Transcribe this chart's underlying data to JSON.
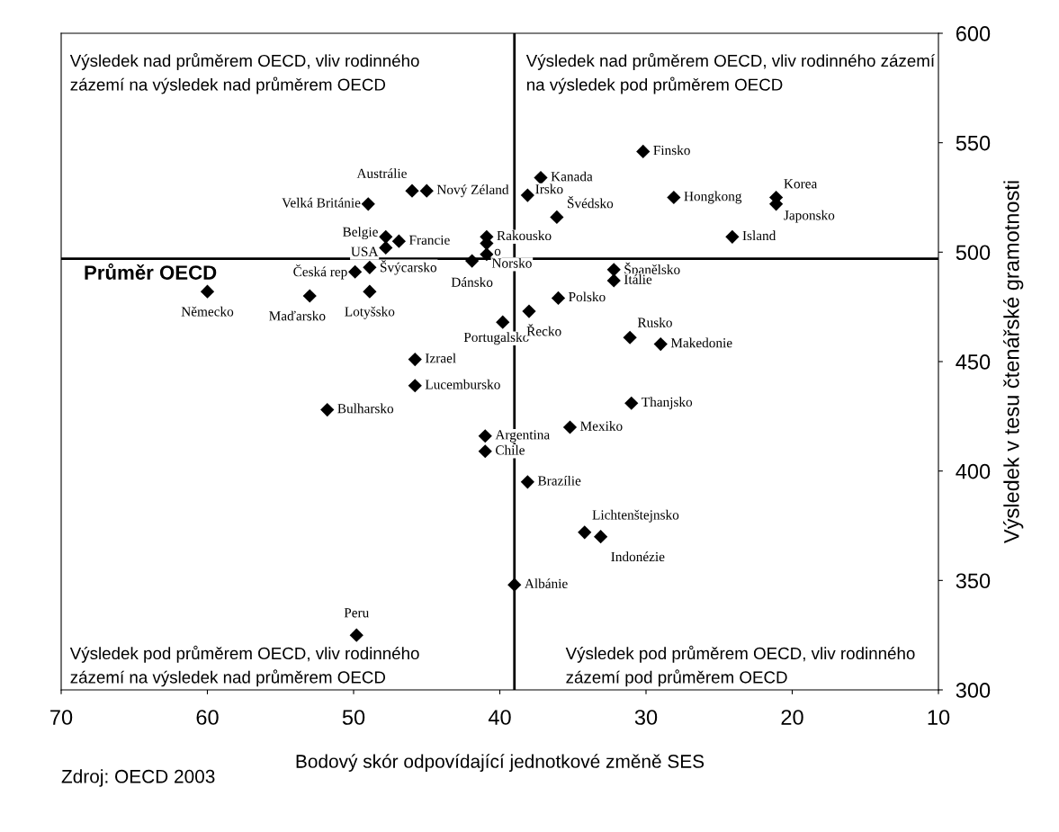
{
  "chart_data": {
    "type": "scatter",
    "xlabel": "Bodový skór odpovídající jednotkové změně SES",
    "ylabel": "Výsledek v tesu čtenářské gramotnosti",
    "x": [
      30.2,
      37.2,
      46.0,
      45.0,
      49.0,
      38.1,
      36.1,
      28.1,
      21.1,
      21.1,
      24.1,
      47.8,
      47.8,
      46.9,
      40.9,
      40.9,
      40.9,
      41.9,
      49.9,
      48.9,
      48.9,
      60.0,
      53.0,
      39.8,
      38.0,
      36.0,
      32.2,
      32.2,
      31.1,
      29.0,
      45.8,
      45.8,
      51.8,
      31.0,
      35.2,
      41.0,
      41.0,
      38.1,
      34.2,
      33.1,
      39.0,
      49.8
    ],
    "series": [
      {
        "color": "#000000",
        "values": [
          546,
          534,
          528,
          528,
          522,
          526,
          516,
          525,
          525,
          522,
          507,
          507,
          502,
          505,
          507,
          504,
          499,
          496,
          491,
          493,
          482,
          482,
          480,
          468,
          473,
          479,
          492,
          487,
          461,
          458,
          451,
          439,
          428,
          431,
          420,
          416,
          409,
          395,
          372,
          370,
          348,
          325
        ]
      }
    ],
    "marker": "diamond",
    "xlim": [
      70,
      10
    ],
    "ylim": [
      300,
      600
    ],
    "xticks": [
      70,
      60,
      50,
      40,
      30,
      20,
      10
    ],
    "yticks": [
      300,
      350,
      400,
      450,
      500,
      550,
      600
    ],
    "grid": false,
    "legend": false,
    "ref_lines": [
      {
        "axis": "x",
        "value": 39,
        "color": "#000000"
      },
      {
        "axis": "y",
        "value": 497,
        "label": "Průměr OECD",
        "color": "#000000"
      }
    ],
    "annotations": [
      "Výsledek nad průměrem OECD, vliv rodinného\nzázemí na výsledek nad průměrem OECD",
      "Výsledek nad průměrem OECD, vliv rodinného zázemí\nna výsledek pod průměrem OECD",
      "Výsledek pod průměrem OECD, vliv rodinného\nzázemí na výsledek nad průměrem OECD",
      "Výsledek pod průměrem OECD, vliv rodinného\nzázemí pod průměrem OECD",
      {
        "text": "Finsko",
        "x": 30.2,
        "y": 546
      },
      {
        "text": "Kanada",
        "x": 37.2,
        "y": 534
      },
      {
        "text": "Austrálie",
        "x": 46.0,
        "y": 528
      },
      {
        "text": "Nový Zéland",
        "x": 45.0,
        "y": 528
      },
      {
        "text": "Velká Británie",
        "x": 49.0,
        "y": 522
      },
      {
        "text": "Irsko",
        "x": 38.1,
        "y": 526
      },
      {
        "text": "Švédsko",
        "x": 36.1,
        "y": 516
      },
      {
        "text": "Hongkong",
        "x": 28.1,
        "y": 525
      },
      {
        "text": "Korea",
        "x": 21.1,
        "y": 525
      },
      {
        "text": "Japonsko",
        "x": 21.1,
        "y": 522
      },
      {
        "text": "Island",
        "x": 24.1,
        "y": 507
      },
      {
        "text": "Belgie",
        "x": 47.8,
        "y": 507
      },
      {
        "text": "USA",
        "x": 47.8,
        "y": 502
      },
      {
        "text": "Francie",
        "x": 46.9,
        "y": 505
      },
      {
        "text": "Rakousko",
        "x": 40.9,
        "y": 507
      },
      {
        "text": "o",
        "x": 40.9,
        "y": 504
      },
      {
        "text": "Norsko",
        "x": 40.9,
        "y": 499
      },
      {
        "text": "Dánsko",
        "x": 41.9,
        "y": 496
      },
      {
        "text": "Česká rep",
        "x": 49.9,
        "y": 491
      },
      {
        "text": "Švýcarsko",
        "x": 48.9,
        "y": 493
      },
      {
        "text": "Lotyšsko",
        "x": 48.9,
        "y": 482
      },
      {
        "text": "Německo",
        "x": 60.0,
        "y": 482
      },
      {
        "text": "Maďarsko",
        "x": 53.0,
        "y": 480
      },
      {
        "text": "Portugalsko",
        "x": 39.8,
        "y": 468
      },
      {
        "text": "Řecko",
        "x": 38.0,
        "y": 473
      },
      {
        "text": "Polsko",
        "x": 36.0,
        "y": 479
      },
      {
        "text": "Španělsko",
        "x": 32.2,
        "y": 492
      },
      {
        "text": "Itálie",
        "x": 32.2,
        "y": 487
      },
      {
        "text": "Rusko",
        "x": 31.1,
        "y": 461
      },
      {
        "text": "Makedonie",
        "x": 29.0,
        "y": 458
      },
      {
        "text": "Izrael",
        "x": 45.8,
        "y": 451
      },
      {
        "text": "Lucembursko",
        "x": 45.8,
        "y": 439
      },
      {
        "text": "Bulharsko",
        "x": 51.8,
        "y": 428
      },
      {
        "text": "Thanjsko",
        "x": 31.0,
        "y": 431
      },
      {
        "text": "Mexiko",
        "x": 35.2,
        "y": 420
      },
      {
        "text": "Argentina",
        "x": 41.0,
        "y": 416
      },
      {
        "text": "Chile",
        "x": 41.0,
        "y": 409
      },
      {
        "text": "Brazílie",
        "x": 38.1,
        "y": 395
      },
      {
        "text": "Lichtenštejnsko",
        "x": 34.2,
        "y": 372
      },
      {
        "text": "Indonézie",
        "x": 33.1,
        "y": 370
      },
      {
        "text": "Albánie",
        "x": 39.0,
        "y": 348
      },
      {
        "text": "Peru",
        "x": 49.8,
        "y": 325
      },
      "Zdroj: OECD 2003"
    ]
  }
}
